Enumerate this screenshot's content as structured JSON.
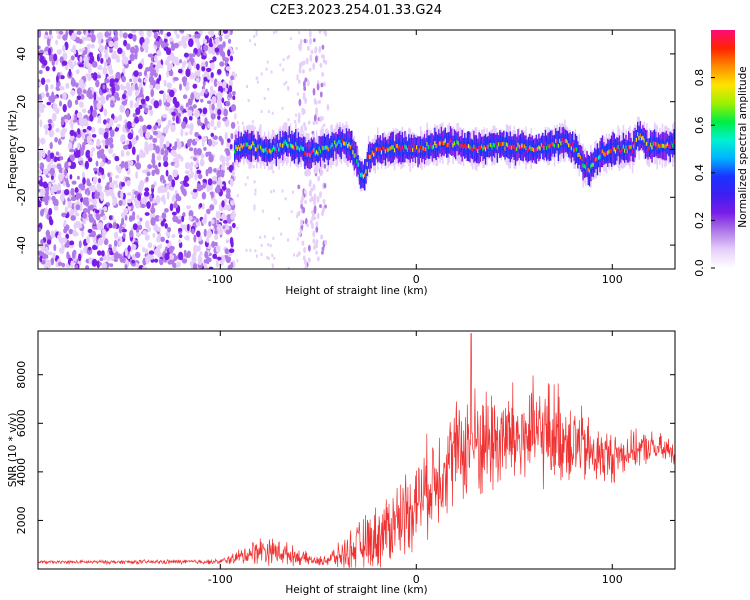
{
  "title": "C2E3.2023.254.01.33.G24",
  "chart_data": [
    {
      "type": "heatmap",
      "xlabel": "Height of straight line (km)",
      "ylabel": "Frequency (Hz)",
      "xlim": [
        -193,
        132
      ],
      "ylim": [
        -50,
        50
      ],
      "x_ticks": [
        -100,
        0,
        100
      ],
      "y_ticks": [
        -40,
        -20,
        0,
        20,
        40
      ],
      "colorbar": {
        "label": "Normalized spectral amplitude",
        "range": [
          0,
          1
        ],
        "ticks": [
          "0.0",
          "0.2",
          "0.4",
          "0.6",
          "0.8"
        ]
      },
      "colormap": [
        "#ffffff",
        "#e6cffa",
        "#b07ae8",
        "#7a1de8",
        "#3d1ff0",
        "#1a33ff",
        "#00b4ff",
        "#00f2d0",
        "#00ee44",
        "#9ef000",
        "#ffe400",
        "#ff8c00",
        "#ff2400",
        "#ff0a78"
      ],
      "ridge": {
        "x": [
          -93,
          -85,
          -75,
          -65,
          -55,
          -45,
          -38,
          -34,
          -31,
          -29,
          -27,
          -25,
          -22,
          -18,
          -10,
          0,
          8,
          15,
          22,
          30,
          40,
          50,
          60,
          68,
          75,
          80,
          84,
          88,
          93,
          100,
          110,
          113,
          118,
          125,
          132
        ],
        "freq_hz": [
          0,
          2,
          -1,
          3,
          -2,
          1,
          3,
          2,
          -4,
          -10,
          -12,
          -4,
          -1,
          0,
          1,
          0,
          2,
          3,
          2,
          0,
          2,
          1,
          0,
          2,
          3,
          1,
          -5,
          -8,
          -2,
          0,
          0,
          6,
          1,
          2,
          2
        ]
      },
      "noise_region": {
        "from_km": -193,
        "to_km": -93
      },
      "secondary_noise_band": {
        "from_km": -60,
        "to_km": -45
      }
    },
    {
      "type": "line",
      "xlabel": "Height of straight line (km)",
      "ylabel": "SNR (10 * v/v)",
      "xlim": [
        -193,
        132
      ],
      "ylim": [
        0,
        9800
      ],
      "x_ticks": [
        -100,
        0,
        100
      ],
      "y_ticks": [
        2000,
        4000,
        6000,
        8000
      ],
      "line_color": "#f03232",
      "envelope": {
        "x": [
          -193,
          -100,
          -90,
          -80,
          -70,
          -60,
          -50,
          -40,
          -30,
          -20,
          -10,
          0,
          10,
          20,
          30,
          40,
          50,
          60,
          70,
          80,
          90,
          100,
          110,
          120,
          132
        ],
        "mean": [
          280,
          300,
          500,
          800,
          700,
          500,
          300,
          500,
          900,
          1300,
          2000,
          2800,
          3800,
          4800,
          5200,
          5300,
          5400,
          5500,
          5600,
          5300,
          4700,
          4600,
          4900,
          5000,
          4800
        ],
        "amp": [
          80,
          120,
          400,
          700,
          650,
          400,
          200,
          600,
          1200,
          1600,
          2000,
          2200,
          2500,
          2500,
          2800,
          2800,
          2700,
          2600,
          2600,
          2200,
          1600,
          1300,
          900,
          800,
          700
        ]
      },
      "peak_value": 9700
    }
  ]
}
